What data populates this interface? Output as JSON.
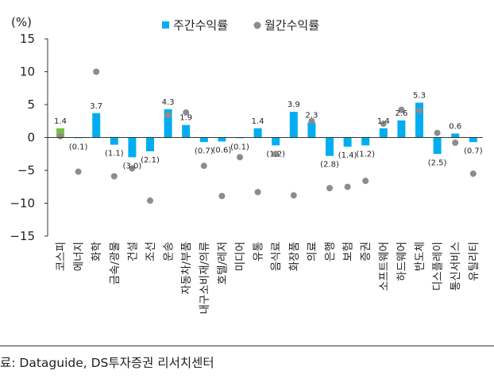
{
  "chart_data": {
    "type": "bar",
    "ylabel": "(%)",
    "ylim": [
      -15,
      15
    ],
    "yticks": [
      15,
      10,
      5,
      0,
      -5,
      -10,
      -15
    ],
    "legend_position": "top-center",
    "categories": [
      "코스피",
      "에너지",
      "화학",
      "금속/광물",
      "건설",
      "조선",
      "운송",
      "자동차/부품",
      "내구소비재/의류",
      "호텔/레저",
      "미디어",
      "유통",
      "음식료",
      "화장품",
      "의료",
      "은행",
      "보험",
      "증권",
      "소프트웨어",
      "하드웨어",
      "반도체",
      "디스플레이",
      "통신서비스",
      "유틸리티"
    ],
    "series": [
      {
        "name": "주간수익률",
        "kind": "bar",
        "color": "#00AEEF",
        "highlight_color": "#7BC143",
        "values": [
          1.4,
          -0.1,
          3.7,
          -1.1,
          -3.0,
          -2.1,
          4.3,
          1.9,
          -0.7,
          -0.6,
          -0.1,
          1.4,
          -1.2,
          3.9,
          2.3,
          -2.8,
          -1.4,
          -1.2,
          1.4,
          2.6,
          5.3,
          -2.5,
          0.6,
          -0.7
        ]
      },
      {
        "name": "월간수익률",
        "kind": "dot",
        "color": "#8C8C8C",
        "values": [
          0.2,
          -5.2,
          10.0,
          -5.9,
          -4.7,
          -9.6,
          3.4,
          3.8,
          -4.3,
          -8.9,
          -3.0,
          -8.3,
          -2.5,
          -8.8,
          2.5,
          -7.7,
          -7.5,
          -6.6,
          2.1,
          4.2,
          4.1,
          0.7,
          -0.8,
          -5.5
        ]
      }
    ],
    "data_labels": [
      "1.4",
      "(0.1)",
      "3.7",
      "(1.1)",
      "(3.0)",
      "(2.1)",
      "4.3",
      "1.9",
      "(0.7)",
      "(0.6)",
      "(0.1)",
      "1.4",
      "(1.2)",
      "3.9",
      "2.3",
      "(2.8)",
      "(1.4)",
      "(1.2)",
      "1.4",
      "2.6",
      "5.3",
      "(2.5)",
      "0.6",
      "(0.7)"
    ]
  },
  "source_text": "료: Dataguide, DS투자증권 리서치센터"
}
